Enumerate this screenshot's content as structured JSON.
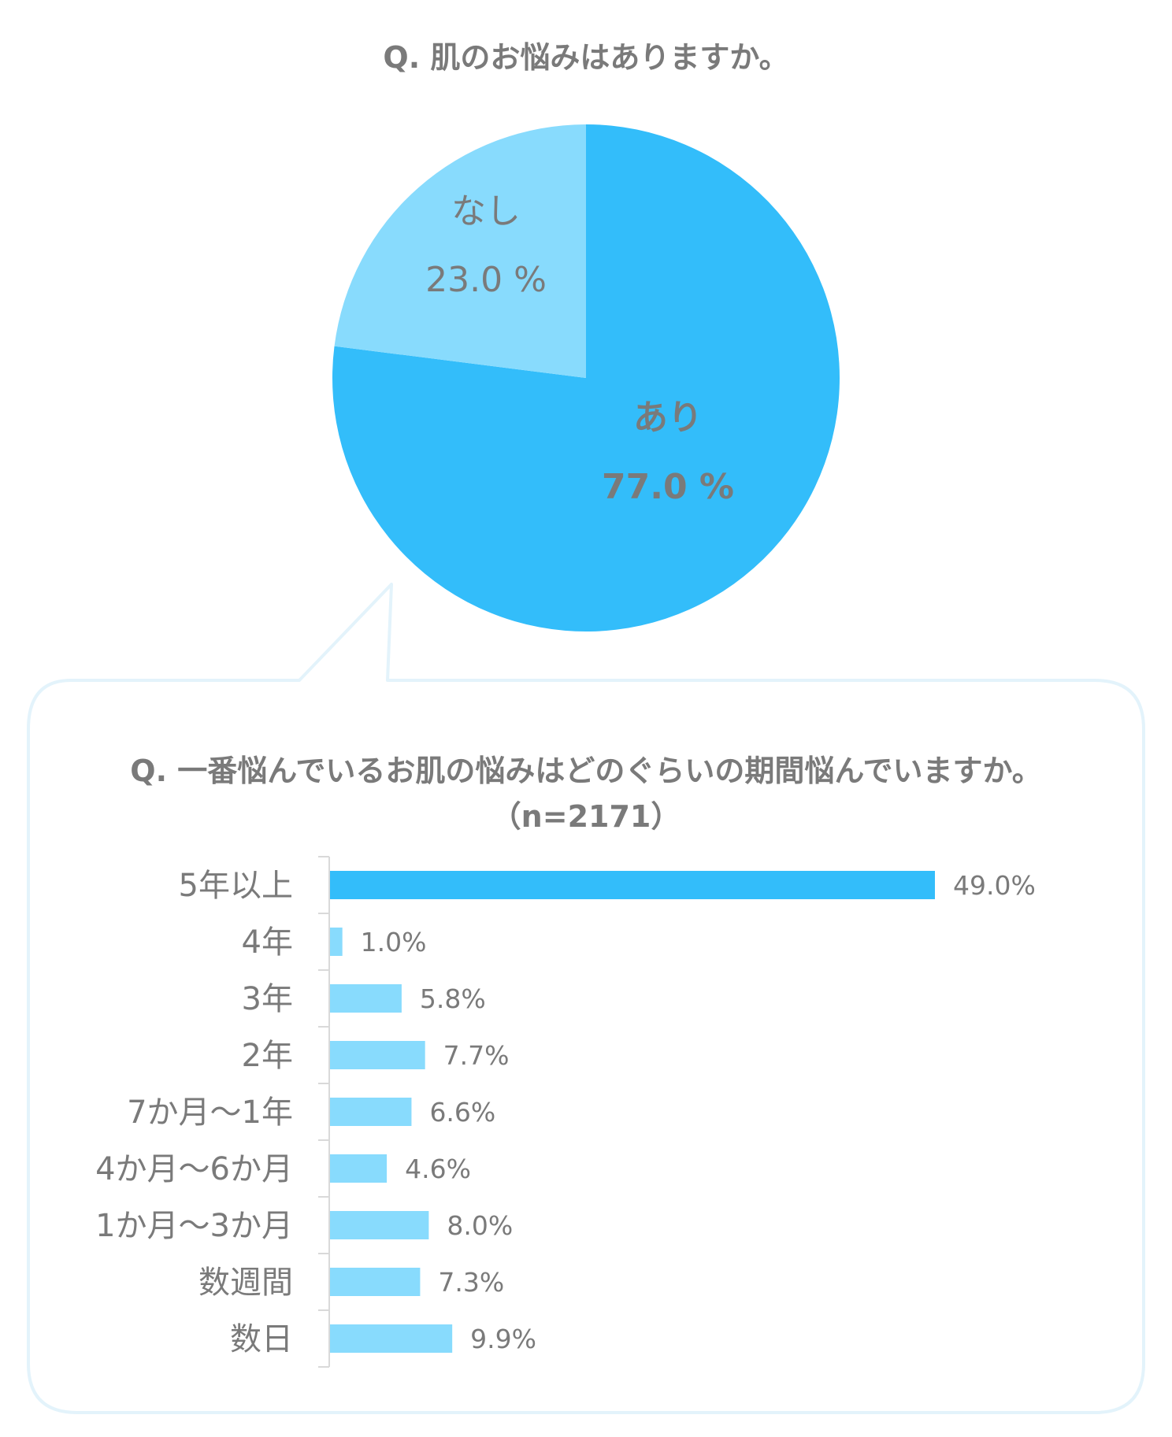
{
  "chart_data": [
    {
      "type": "pie",
      "title": "Q. 肌のお悩みはありますか。",
      "slices": [
        {
          "label": "あり",
          "value": 77.0,
          "display": "77.0 %",
          "color": "#33bdfa"
        },
        {
          "label": "なし",
          "value": 23.0,
          "display": "23.0 %",
          "color": "#88dbfd"
        }
      ]
    },
    {
      "type": "bar",
      "orientation": "horizontal",
      "title": "Q. 一番悩んでいるお肌の悩みはどのぐらいの期間悩んでいますか。",
      "subtitle": "（n=2171）",
      "categories": [
        "5年以上",
        "4年",
        "3年",
        "2年",
        "7か月～1年",
        "4か月～6か月",
        "1か月～3か月",
        "数週間",
        "数日"
      ],
      "values": [
        49.0,
        1.0,
        5.8,
        7.7,
        6.6,
        4.6,
        8.0,
        7.3,
        9.9
      ],
      "value_labels": [
        "49.0%",
        "1.0%",
        "5.8%",
        "7.7%",
        "6.6%",
        "4.6%",
        "8.0%",
        "7.3%",
        "9.9%"
      ],
      "highlight_color": "#33bdfa",
      "bar_color": "#88dbfd",
      "grid": false
    }
  ]
}
